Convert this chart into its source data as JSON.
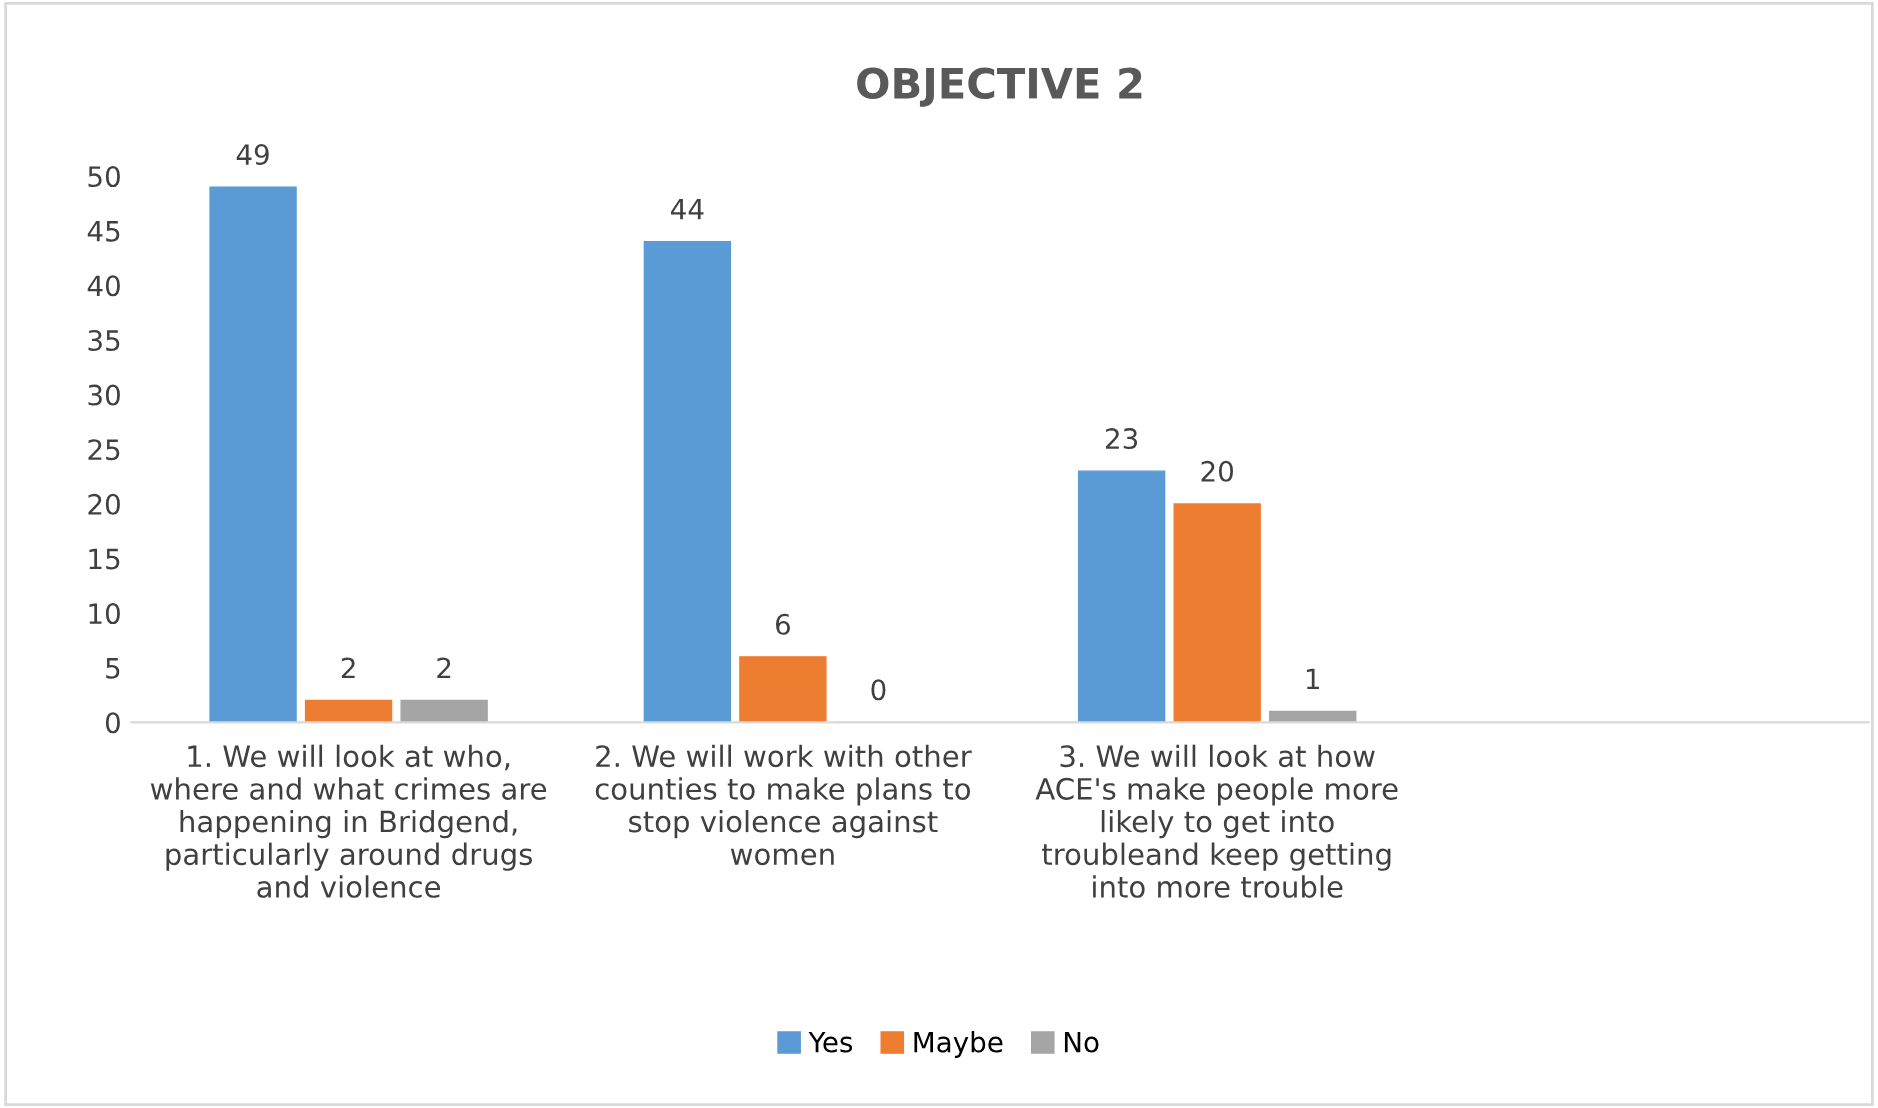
{
  "chart_data": {
    "type": "bar",
    "title": "OBJECTIVE 2",
    "categories": [
      "1. We will look at who, where and what crimes are happening in Bridgend, particularly around drugs and violence",
      "2. We will work with other counties to make plans to stop violence against women",
      "3. We will look at how ACE's make people more likely to get into troubleand keep getting into more trouble",
      null
    ],
    "series": [
      {
        "name": "Yes",
        "color": "#5b9bd5",
        "values": [
          49,
          44,
          23,
          null
        ]
      },
      {
        "name": "Maybe",
        "color": "#ed7d31",
        "values": [
          2,
          6,
          20,
          null
        ]
      },
      {
        "name": "No",
        "color": "#a5a5a5",
        "values": [
          2,
          0,
          1,
          null
        ]
      }
    ],
    "ylim": [
      0,
      50
    ],
    "yticks": [
      0,
      5,
      10,
      15,
      20,
      25,
      30,
      35,
      40,
      45,
      50
    ],
    "data_labels": true,
    "legend": "bottom",
    "grid": false
  }
}
